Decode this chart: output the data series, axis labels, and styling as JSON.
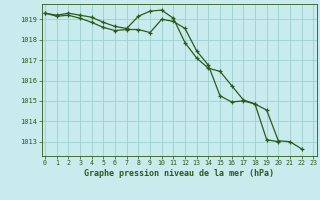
{
  "title": "Graphe pression niveau de la mer (hPa)",
  "background_color": "#c8ecee",
  "grid_color": "#9dcfcf",
  "line_color": "#2d5a1b",
  "ylim": [
    1012.3,
    1019.75
  ],
  "xlim": [
    -0.3,
    23.3
  ],
  "yticks": [
    1013,
    1014,
    1015,
    1016,
    1017,
    1018,
    1019
  ],
  "xticks": [
    0,
    1,
    2,
    3,
    4,
    5,
    6,
    7,
    8,
    9,
    10,
    11,
    12,
    13,
    14,
    15,
    16,
    17,
    18,
    19,
    20,
    21,
    22,
    23
  ],
  "series1": [
    1019.3,
    1019.2,
    1019.3,
    1019.2,
    1019.1,
    1018.85,
    1018.65,
    1018.55,
    1019.15,
    1019.4,
    1019.45,
    1019.05,
    1017.85,
    1017.1,
    1016.6,
    1016.45,
    1015.75,
    1015.05,
    1014.85,
    1014.55,
    1013.05,
    1013.0,
    1012.65,
    null
  ],
  "series2": [
    1019.3,
    1019.15,
    1019.2,
    1019.05,
    1018.85,
    1018.6,
    1018.45,
    1018.5,
    1018.5,
    1018.35,
    1019.0,
    1018.9,
    1018.55,
    1017.45,
    1016.75,
    1015.25,
    1014.95,
    1015.0,
    1014.85,
    1013.1,
    1013.0,
    null,
    null,
    null
  ]
}
